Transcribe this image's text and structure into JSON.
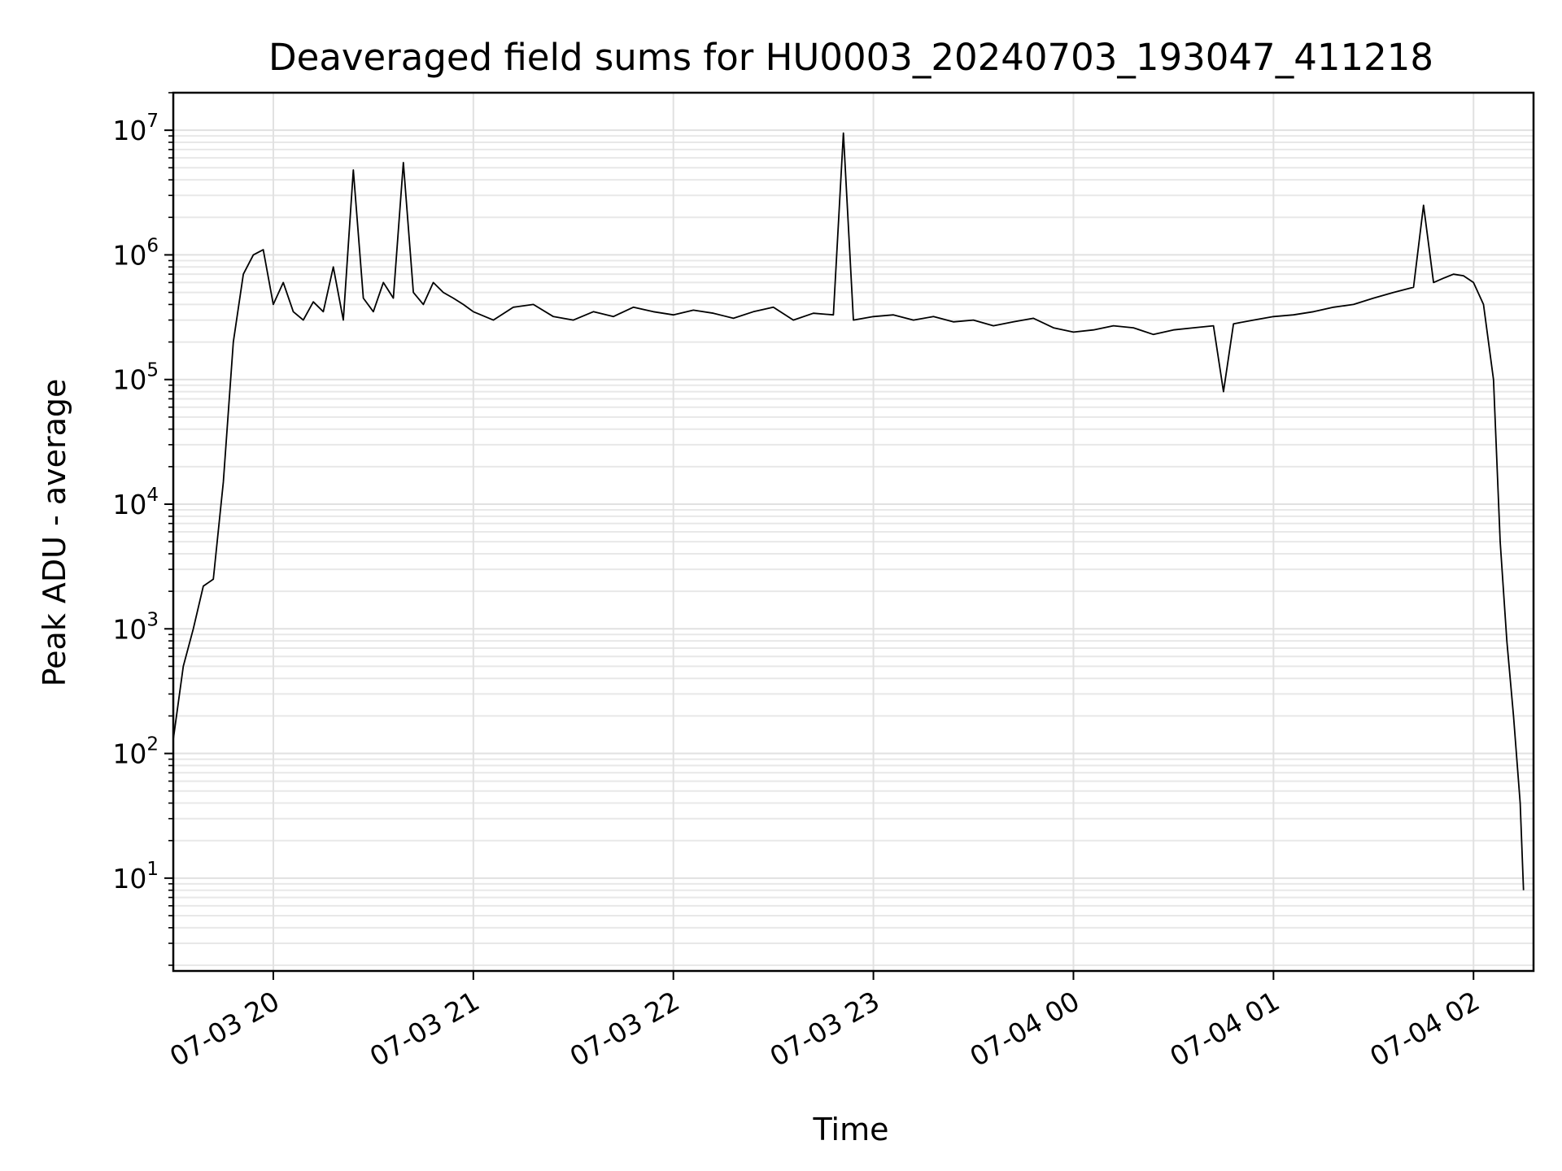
{
  "chart_data": {
    "type": "line",
    "title": "Deaveraged field sums for HU0003_20240703_193047_411218",
    "xlabel": "Time",
    "ylabel": "Peak ADU - average",
    "y_scale": "log",
    "grid": "on (major and minor)",
    "line_color": "#000000",
    "xlim": [
      "2024-07-03 19:30",
      "2024-07-04 02:18"
    ],
    "ylim": [
      1.8,
      20000000
    ],
    "x_ticks": [
      {
        "value": "2024-07-03 20:00",
        "label": "07-03 20"
      },
      {
        "value": "2024-07-03 21:00",
        "label": "07-03 21"
      },
      {
        "value": "2024-07-03 22:00",
        "label": "07-03 22"
      },
      {
        "value": "2024-07-03 23:00",
        "label": "07-03 23"
      },
      {
        "value": "2024-07-04 00:00",
        "label": "07-04 00"
      },
      {
        "value": "2024-07-04 01:00",
        "label": "07-04 01"
      },
      {
        "value": "2024-07-04 02:00",
        "label": "07-04 02"
      }
    ],
    "y_ticks": [
      {
        "value": 10,
        "base": "10",
        "exp": "1"
      },
      {
        "value": 100,
        "base": "10",
        "exp": "2"
      },
      {
        "value": 1000,
        "base": "10",
        "exp": "3"
      },
      {
        "value": 10000,
        "base": "10",
        "exp": "4"
      },
      {
        "value": 100000,
        "base": "10",
        "exp": "5"
      },
      {
        "value": 1000000,
        "base": "10",
        "exp": "6"
      },
      {
        "value": 10000000,
        "base": "10",
        "exp": "7"
      }
    ],
    "series": [
      {
        "x": [
          "2024-07-03 19:30",
          "2024-07-03 19:33",
          "2024-07-03 19:36",
          "2024-07-03 19:39",
          "2024-07-03 19:42",
          "2024-07-03 19:45",
          "2024-07-03 19:48",
          "2024-07-03 19:51",
          "2024-07-03 19:54",
          "2024-07-03 19:57",
          "2024-07-03 20:00",
          "2024-07-03 20:03",
          "2024-07-03 20:06",
          "2024-07-03 20:09",
          "2024-07-03 20:12",
          "2024-07-03 20:15",
          "2024-07-03 20:18",
          "2024-07-03 20:21",
          "2024-07-03 20:24",
          "2024-07-03 20:27",
          "2024-07-03 20:30",
          "2024-07-03 20:33",
          "2024-07-03 20:36",
          "2024-07-03 20:39",
          "2024-07-03 20:42",
          "2024-07-03 20:45",
          "2024-07-03 20:48",
          "2024-07-03 20:51",
          "2024-07-03 20:54",
          "2024-07-03 20:57",
          "2024-07-03 21:00",
          "2024-07-03 21:06",
          "2024-07-03 21:12",
          "2024-07-03 21:18",
          "2024-07-03 21:24",
          "2024-07-03 21:30",
          "2024-07-03 21:36",
          "2024-07-03 21:42",
          "2024-07-03 21:48",
          "2024-07-03 21:54",
          "2024-07-03 22:00",
          "2024-07-03 22:06",
          "2024-07-03 22:12",
          "2024-07-03 22:18",
          "2024-07-03 22:24",
          "2024-07-03 22:30",
          "2024-07-03 22:36",
          "2024-07-03 22:42",
          "2024-07-03 22:48",
          "2024-07-03 22:51",
          "2024-07-03 22:54",
          "2024-07-03 23:00",
          "2024-07-03 23:06",
          "2024-07-03 23:12",
          "2024-07-03 23:18",
          "2024-07-03 23:24",
          "2024-07-03 23:30",
          "2024-07-03 23:36",
          "2024-07-03 23:42",
          "2024-07-03 23:48",
          "2024-07-03 23:54",
          "2024-07-04 00:00",
          "2024-07-04 00:06",
          "2024-07-04 00:12",
          "2024-07-04 00:18",
          "2024-07-04 00:24",
          "2024-07-04 00:30",
          "2024-07-04 00:36",
          "2024-07-04 00:42",
          "2024-07-04 00:45",
          "2024-07-04 00:48",
          "2024-07-04 00:54",
          "2024-07-04 01:00",
          "2024-07-04 01:06",
          "2024-07-04 01:12",
          "2024-07-04 01:18",
          "2024-07-04 01:24",
          "2024-07-04 01:30",
          "2024-07-04 01:36",
          "2024-07-04 01:42",
          "2024-07-04 01:45",
          "2024-07-04 01:48",
          "2024-07-04 01:51",
          "2024-07-04 01:54",
          "2024-07-04 01:57",
          "2024-07-04 02:00",
          "2024-07-04 02:03",
          "2024-07-04 02:06",
          "2024-07-04 02:08",
          "2024-07-04 02:10",
          "2024-07-04 02:12",
          "2024-07-04 02:14",
          "2024-07-04 02:15"
        ],
        "values": [
          130,
          500,
          1000,
          2200,
          2500,
          15000,
          200000,
          700000,
          1000000,
          1100000,
          400000,
          600000,
          350000,
          300000,
          420000,
          350000,
          800000,
          300000,
          4800000,
          450000,
          350000,
          600000,
          450000,
          5500000,
          500000,
          400000,
          600000,
          500000,
          450000,
          400000,
          350000,
          300000,
          380000,
          400000,
          320000,
          300000,
          350000,
          320000,
          380000,
          350000,
          330000,
          360000,
          340000,
          310000,
          350000,
          380000,
          300000,
          340000,
          330000,
          9500000,
          300000,
          320000,
          330000,
          300000,
          320000,
          290000,
          300000,
          270000,
          290000,
          310000,
          260000,
          240000,
          250000,
          270000,
          260000,
          230000,
          250000,
          260000,
          270000,
          80000,
          280000,
          300000,
          320000,
          330000,
          350000,
          380000,
          400000,
          450000,
          500000,
          550000,
          2500000,
          600000,
          650000,
          700000,
          680000,
          600000,
          400000,
          100000,
          5000,
          800,
          200,
          40,
          8
        ]
      }
    ]
  }
}
